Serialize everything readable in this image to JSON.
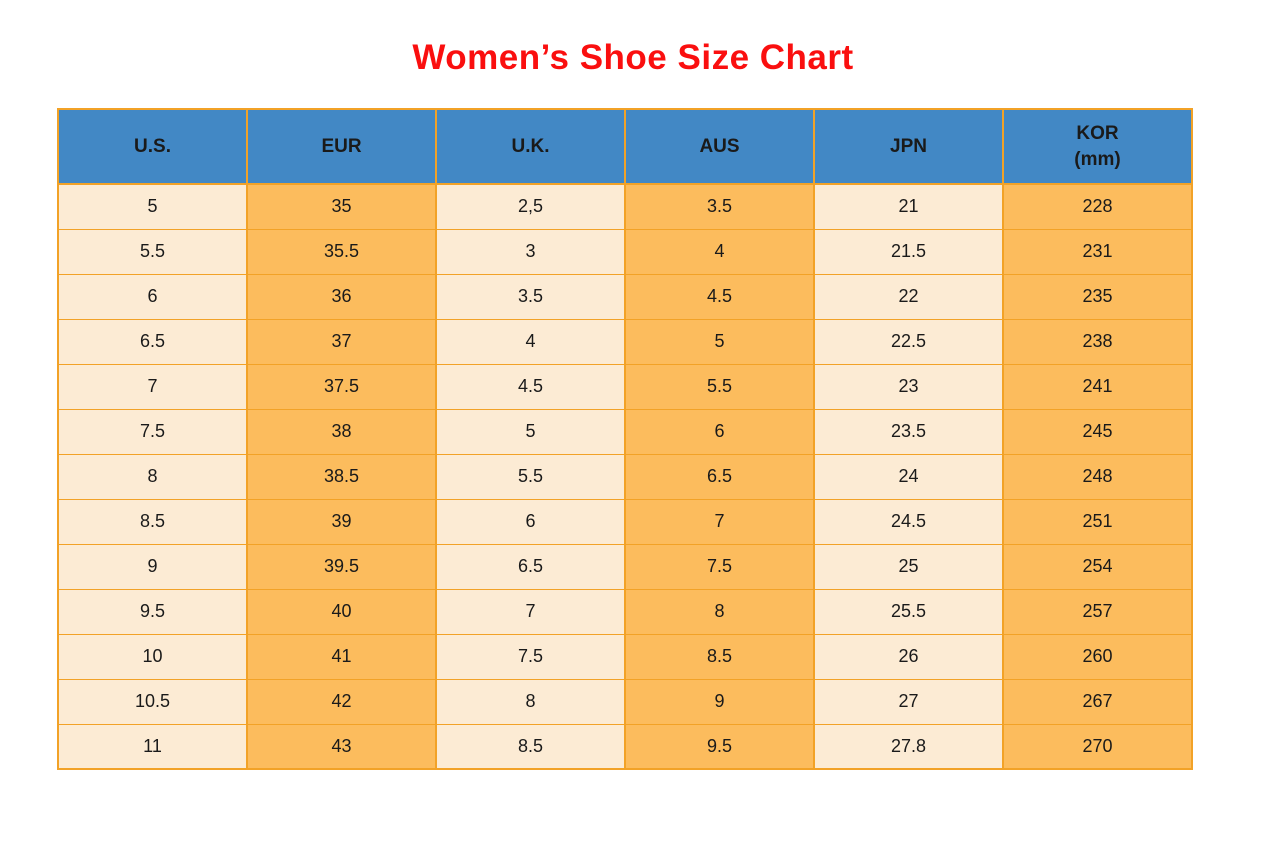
{
  "title": "Women’s Shoe Size Chart",
  "colors": {
    "title_red": "#fa0f0f",
    "header_blue": "#4288c5",
    "cell_orange": "#fcbc5d",
    "cell_cream": "#fcebd4",
    "border_orange": "#f2a227",
    "text_black": "#1a1a1a"
  },
  "table": {
    "headers": [
      {
        "label": "U.S.",
        "sublabel": ""
      },
      {
        "label": "EUR",
        "sublabel": ""
      },
      {
        "label": "U.K.",
        "sublabel": ""
      },
      {
        "label": "AUS",
        "sublabel": ""
      },
      {
        "label": "JPN",
        "sublabel": ""
      },
      {
        "label": "KOR",
        "sublabel": "(mm)"
      }
    ],
    "rows": [
      [
        "5",
        "35",
        "2,5",
        "3.5",
        "21",
        "228"
      ],
      [
        "5.5",
        "35.5",
        "3",
        "4",
        "21.5",
        "231"
      ],
      [
        "6",
        "36",
        "3.5",
        "4.5",
        "22",
        "235"
      ],
      [
        "6.5",
        "37",
        "4",
        "5",
        "22.5",
        "238"
      ],
      [
        "7",
        "37.5",
        "4.5",
        "5.5",
        "23",
        "241"
      ],
      [
        "7.5",
        "38",
        "5",
        "6",
        "23.5",
        "245"
      ],
      [
        "8",
        "38.5",
        "5.5",
        "6.5",
        "24",
        "248"
      ],
      [
        "8.5",
        "39",
        "6",
        "7",
        "24.5",
        "251"
      ],
      [
        "9",
        "39.5",
        "6.5",
        "7.5",
        "25",
        "254"
      ],
      [
        "9.5",
        "40",
        "7",
        "8",
        "25.5",
        "257"
      ],
      [
        "10",
        "41",
        "7.5",
        "8.5",
        "26",
        "260"
      ],
      [
        "10.5",
        "42",
        "8",
        "9",
        "27",
        "267"
      ],
      [
        "11",
        "43",
        "8.5",
        "9.5",
        "27.8",
        "270"
      ]
    ]
  },
  "chart_data": {
    "type": "table",
    "title": "Women’s Shoe Size Chart",
    "columns": [
      "U.S.",
      "EUR",
      "U.K.",
      "AUS",
      "JPN",
      "KOR (mm)"
    ],
    "rows": [
      [
        "5",
        "35",
        "2,5",
        "3.5",
        "21",
        "228"
      ],
      [
        "5.5",
        "35.5",
        "3",
        "4",
        "21.5",
        "231"
      ],
      [
        "6",
        "36",
        "3.5",
        "4.5",
        "22",
        "235"
      ],
      [
        "6.5",
        "37",
        "4",
        "5",
        "22.5",
        "238"
      ],
      [
        "7",
        "37.5",
        "4.5",
        "5.5",
        "23",
        "241"
      ],
      [
        "7.5",
        "38",
        "5",
        "6",
        "23.5",
        "245"
      ],
      [
        "8",
        "38.5",
        "5.5",
        "6.5",
        "24",
        "248"
      ],
      [
        "8.5",
        "39",
        "6",
        "7",
        "24.5",
        "251"
      ],
      [
        "9",
        "39.5",
        "6.5",
        "7.5",
        "25",
        "254"
      ],
      [
        "9.5",
        "40",
        "7",
        "8",
        "25.5",
        "257"
      ],
      [
        "10",
        "41",
        "7.5",
        "8.5",
        "26",
        "260"
      ],
      [
        "10.5",
        "42",
        "8",
        "9",
        "27",
        "267"
      ],
      [
        "11",
        "43",
        "8.5",
        "9.5",
        "27.8",
        "270"
      ]
    ]
  }
}
